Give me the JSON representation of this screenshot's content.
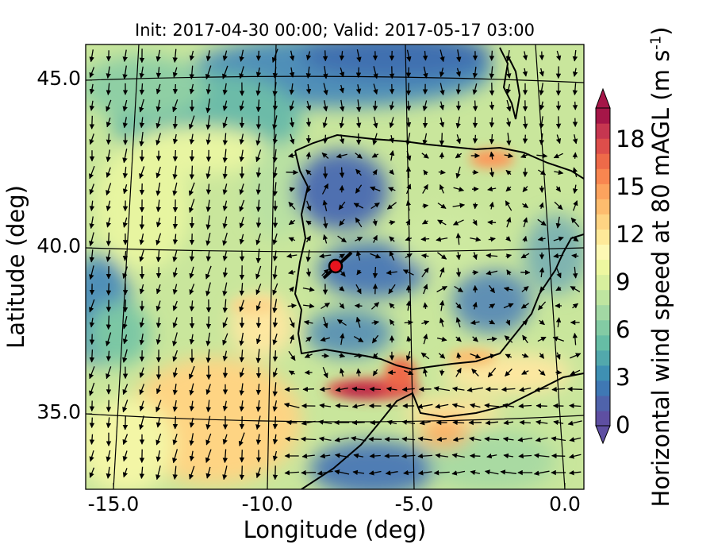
{
  "title": "Init: 2017-04-30 00:00; Valid: 2017-05-17 03:00",
  "xlabel": "Longitude (deg)",
  "ylabel": "Latitude (deg)",
  "x_ticks": [
    "-15.0",
    "-10.0",
    "-5.0",
    "0.0"
  ],
  "y_ticks": [
    "45.0",
    "40.0",
    "35.0"
  ],
  "colorbar": {
    "label": "Horizontal wind speed at 80 mAGL (m s",
    "label_sup": "-1",
    "label_close": ")",
    "ticks": [
      "0",
      "3",
      "6",
      "9",
      "12",
      "15",
      "18"
    ],
    "range": [
      0,
      20
    ],
    "colors": [
      "#5e4fa2",
      "#4f63ab",
      "#3f78b4",
      "#3f90b3",
      "#52a8ac",
      "#66bda5",
      "#83cba4",
      "#a2d8a4",
      "#bfe5a0",
      "#d8ef9e",
      "#edf7a0",
      "#fdf8b4",
      "#fee999",
      "#fed483",
      "#fdbc6e",
      "#fca35e",
      "#f88650",
      "#ee6a49",
      "#dd4e4b",
      "#c63650",
      "#a51648"
    ]
  },
  "chart_data": {
    "type": "heatmap",
    "title": "Init: 2017-04-30 00:00; Valid: 2017-05-17 03:00",
    "xlabel": "Longitude (deg)",
    "ylabel": "Latitude (deg)",
    "xlim": [
      -15.9,
      0.3
    ],
    "ylim": [
      32.6,
      46.1
    ],
    "zlabel": "Horizontal wind speed at 80 mAGL (m s-1)",
    "zlim": [
      0,
      20
    ],
    "grid": true,
    "marker": {
      "lon": -7.6,
      "lat": 39.3
    },
    "speed_hotspots": [
      {
        "lon": -6.2,
        "lat": 35.8,
        "speed": 20
      },
      {
        "lon": -5.6,
        "lat": 36.4,
        "speed": 18
      },
      {
        "lon": -2.5,
        "lat": 42.5,
        "speed": 16
      },
      {
        "lon": -4.8,
        "lat": 33.9,
        "speed": 14
      },
      {
        "lon": -12.5,
        "lat": 34.3,
        "speed": 11
      },
      {
        "lon": -9.2,
        "lat": 37.5,
        "speed": 11
      }
    ]
  }
}
